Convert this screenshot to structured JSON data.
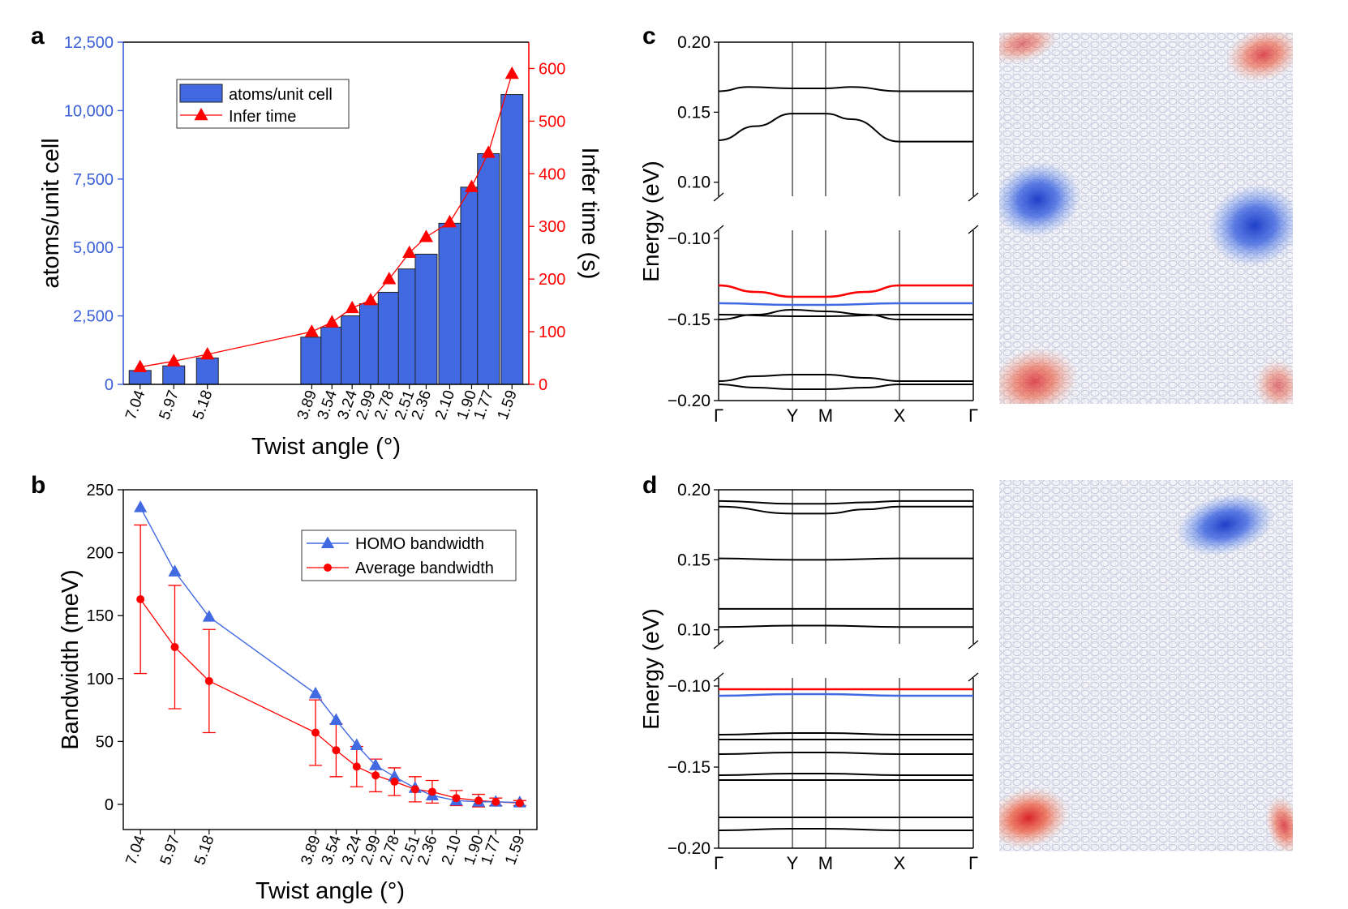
{
  "panels": {
    "a": "a",
    "b": "b",
    "c": "c",
    "d": "d"
  },
  "colors": {
    "blue": "#4169e1",
    "blue_axis": "#3a5fd9",
    "red": "#ff0000",
    "black": "#000000"
  },
  "chart_data": [
    {
      "id": "a",
      "type": "bar",
      "categories": [
        "7.04",
        "5.97",
        "5.18",
        "3.89",
        "3.54",
        "3.24",
        "2.99",
        "2.78",
        "2.51",
        "2.36",
        "2.10",
        "1.90",
        "1.77",
        "1.59"
      ],
      "x_positions": [
        0,
        1,
        2,
        5.1,
        5.7,
        6.3,
        6.85,
        7.4,
        8.0,
        8.5,
        9.2,
        9.85,
        10.35,
        11.05
      ],
      "xlim": [
        -0.5,
        11.55
      ],
      "xlabel": "Twist angle (°)",
      "series": [
        {
          "name": "atoms/unit cell",
          "type": "bar",
          "axis": "left",
          "values": [
            508,
            676,
            964,
            1724,
            2092,
            2504,
            2944,
            3364,
            4216,
            4756,
            5884,
            7204,
            8428,
            10588
          ]
        },
        {
          "name": "Infer time",
          "type": "line",
          "axis": "right",
          "values": [
            33,
            44,
            57,
            100,
            118,
            145,
            160,
            200,
            250,
            280,
            308,
            375,
            440,
            590
          ]
        }
      ],
      "ylabel_left": "atoms/unit cell",
      "ylim_left": [
        0,
        12500
      ],
      "yticks_left": [
        0,
        2500,
        5000,
        7500,
        10000,
        12500
      ],
      "yticklabels_left": [
        "0",
        "2,500",
        "5,000",
        "7,500",
        "10,000",
        "12,500"
      ],
      "ylabel_right": "Infer time (s)",
      "ylim_right": [
        0,
        650
      ],
      "yticks_right": [
        0,
        100,
        200,
        300,
        400,
        500,
        600
      ],
      "yticklabels_right": [
        "0",
        "100",
        "200",
        "300",
        "400",
        "500",
        "600"
      ],
      "legend": [
        "atoms/unit cell",
        "Infer time"
      ],
      "legend_position": "top-left"
    },
    {
      "id": "b",
      "type": "line",
      "categories": [
        "7.04",
        "5.97",
        "5.18",
        "3.89",
        "3.54",
        "3.24",
        "2.99",
        "2.78",
        "2.51",
        "2.36",
        "2.10",
        "1.90",
        "1.77",
        "1.59"
      ],
      "x_positions": [
        0,
        1,
        2,
        5.1,
        5.7,
        6.3,
        6.85,
        7.4,
        8.0,
        8.5,
        9.2,
        9.85,
        10.35,
        11.05
      ],
      "xlim": [
        -0.5,
        11.55
      ],
      "xlabel": "Twist angle (°)",
      "ylabel": "Bandwidth (meV)",
      "ylim": [
        -20,
        250
      ],
      "yticks": [
        0,
        50,
        100,
        150,
        200,
        250
      ],
      "series": [
        {
          "name": "HOMO bandwidth",
          "marker": "triangle",
          "values": [
            236,
            185,
            149,
            88,
            67,
            47,
            31,
            22,
            13,
            7,
            3,
            2,
            2,
            1.5
          ]
        },
        {
          "name": "Average bandwidth",
          "marker": "circle",
          "values": [
            163,
            125,
            98,
            57,
            43,
            30,
            23,
            18,
            12,
            10,
            5,
            3,
            2,
            1
          ],
          "errors": [
            59,
            49,
            41,
            26,
            21,
            16,
            13,
            11,
            10,
            9,
            6,
            5,
            3,
            2
          ]
        }
      ],
      "legend": [
        "HOMO bandwidth",
        "Average bandwidth"
      ],
      "legend_position": "top-right"
    },
    {
      "id": "c",
      "type": "line",
      "ylabel": "Energy (eV)",
      "xticks": [
        "Γ",
        "Y",
        "M",
        "X",
        "Γ"
      ],
      "xtick_positions": [
        0,
        1,
        1.45,
        2.45,
        3.45
      ],
      "broken_axis": true,
      "upper_ylim": [
        0.09,
        0.2
      ],
      "upper_yticks": [
        0.1,
        0.15,
        0.2
      ],
      "upper_yticklabels": [
        "0.10",
        "0.15",
        "0.20"
      ],
      "lower_ylim": [
        -0.2,
        -0.095
      ],
      "lower_yticks": [
        -0.2,
        -0.15,
        -0.1
      ],
      "lower_yticklabels": [
        "−0.20",
        "−0.15",
        "−0.10"
      ],
      "bands": [
        {
          "color": "black",
          "k": [
            0,
            0.4,
            1,
            1.45,
            1.8,
            2.45,
            3.45
          ],
          "e": [
            0.165,
            0.168,
            0.167,
            0.167,
            0.168,
            0.165,
            0.165
          ]
        },
        {
          "color": "black",
          "k": [
            0,
            0.5,
            1,
            1.45,
            1.8,
            2.45,
            3.45
          ],
          "e": [
            0.13,
            0.14,
            0.149,
            0.149,
            0.145,
            0.129,
            0.129
          ]
        },
        {
          "color": "red",
          "k": [
            0,
            0.5,
            1,
            1.45,
            2.0,
            2.45,
            3.45
          ],
          "e": [
            -0.129,
            -0.133,
            -0.136,
            -0.136,
            -0.133,
            -0.129,
            -0.129
          ]
        },
        {
          "color": "blue",
          "k": [
            0,
            1,
            1.45,
            2.45,
            3.45
          ],
          "e": [
            -0.14,
            -0.141,
            -0.141,
            -0.14,
            -0.14
          ]
        },
        {
          "color": "black",
          "k": [
            0,
            0.5,
            1,
            1.45,
            2.0,
            2.45,
            3.45
          ],
          "e": [
            -0.15,
            -0.147,
            -0.144,
            -0.145,
            -0.147,
            -0.15,
            -0.15
          ]
        },
        {
          "color": "black",
          "k": [
            0,
            1,
            1.45,
            2.45,
            3.45
          ],
          "e": [
            -0.147,
            -0.148,
            -0.148,
            -0.147,
            -0.147
          ]
        },
        {
          "color": "black",
          "k": [
            0,
            0.5,
            1,
            1.45,
            2.0,
            2.45,
            3.45
          ],
          "e": [
            -0.188,
            -0.185,
            -0.184,
            -0.184,
            -0.186,
            -0.188,
            -0.188
          ]
        },
        {
          "color": "black",
          "k": [
            0,
            0.5,
            1,
            1.45,
            2.0,
            2.45,
            3.45
          ],
          "e": [
            -0.19,
            -0.192,
            -0.193,
            -0.193,
            -0.192,
            -0.19,
            -0.19
          ]
        }
      ],
      "map_blobs": [
        {
          "color": "red",
          "cx": 0.08,
          "cy": 0.03,
          "rx": 0.12,
          "ry": 0.05,
          "alpha": 0.6
        },
        {
          "color": "red",
          "cx": 0.9,
          "cy": 0.06,
          "rx": 0.13,
          "ry": 0.07,
          "alpha": 0.8
        },
        {
          "color": "blue",
          "cx": 0.13,
          "cy": 0.45,
          "rx": 0.15,
          "ry": 0.1,
          "alpha": 1.0
        },
        {
          "color": "blue",
          "cx": 0.87,
          "cy": 0.52,
          "rx": 0.16,
          "ry": 0.11,
          "alpha": 1.0
        },
        {
          "color": "red",
          "cx": 0.12,
          "cy": 0.94,
          "rx": 0.15,
          "ry": 0.09,
          "alpha": 0.8
        },
        {
          "color": "red",
          "cx": 0.95,
          "cy": 0.95,
          "rx": 0.08,
          "ry": 0.07,
          "alpha": 0.6
        }
      ]
    },
    {
      "id": "d",
      "type": "line",
      "ylabel": "Energy (eV)",
      "xticks": [
        "Γ",
        "Y",
        "M",
        "X",
        "Γ"
      ],
      "xtick_positions": [
        0,
        1,
        1.45,
        2.45,
        3.45
      ],
      "broken_axis": true,
      "upper_ylim": [
        0.09,
        0.2
      ],
      "upper_yticks": [
        0.1,
        0.15,
        0.2
      ],
      "upper_yticklabels": [
        "0.10",
        "0.15",
        "0.20"
      ],
      "lower_ylim": [
        -0.2,
        -0.095
      ],
      "lower_yticks": [
        -0.2,
        -0.15,
        -0.1
      ],
      "lower_yticklabels": [
        "−0.20",
        "−0.15",
        "−0.10"
      ],
      "bands": [
        {
          "color": "black",
          "k": [
            0,
            1,
            1.45,
            2.0,
            2.45,
            3.45
          ],
          "e": [
            0.192,
            0.19,
            0.19,
            0.191,
            0.192,
            0.192
          ]
        },
        {
          "color": "black",
          "k": [
            0,
            1,
            1.45,
            2.0,
            2.45,
            3.45
          ],
          "e": [
            0.188,
            0.183,
            0.183,
            0.186,
            0.188,
            0.188
          ]
        },
        {
          "color": "black",
          "k": [
            0,
            1,
            1.45,
            2.45,
            3.45
          ],
          "e": [
            0.151,
            0.15,
            0.15,
            0.151,
            0.151
          ]
        },
        {
          "color": "black",
          "k": [
            0,
            1,
            1.45,
            2.45,
            3.45
          ],
          "e": [
            0.115,
            0.115,
            0.115,
            0.115,
            0.115
          ]
        },
        {
          "color": "black",
          "k": [
            0,
            1,
            1.45,
            2.45,
            3.45
          ],
          "e": [
            0.102,
            0.103,
            0.103,
            0.102,
            0.102
          ]
        },
        {
          "color": "red",
          "k": [
            0,
            1,
            1.45,
            2.45,
            3.45
          ],
          "e": [
            -0.102,
            -0.102,
            -0.102,
            -0.102,
            -0.102
          ]
        },
        {
          "color": "blue",
          "k": [
            0,
            1,
            1.45,
            2.45,
            3.45
          ],
          "e": [
            -0.106,
            -0.105,
            -0.105,
            -0.106,
            -0.106
          ]
        },
        {
          "color": "black",
          "k": [
            0,
            1,
            1.45,
            2.45,
            3.45
          ],
          "e": [
            -0.13,
            -0.129,
            -0.129,
            -0.13,
            -0.13
          ]
        },
        {
          "color": "black",
          "k": [
            0,
            1,
            1.45,
            2.45,
            3.45
          ],
          "e": [
            -0.133,
            -0.133,
            -0.133,
            -0.133,
            -0.133
          ]
        },
        {
          "color": "black",
          "k": [
            0,
            1,
            1.45,
            2.45,
            3.45
          ],
          "e": [
            -0.142,
            -0.141,
            -0.141,
            -0.142,
            -0.142
          ]
        },
        {
          "color": "black",
          "k": [
            0,
            1,
            1.45,
            2.45,
            3.45
          ],
          "e": [
            -0.155,
            -0.154,
            -0.154,
            -0.155,
            -0.155
          ]
        },
        {
          "color": "black",
          "k": [
            0,
            1,
            1.45,
            2.45,
            3.45
          ],
          "e": [
            -0.158,
            -0.158,
            -0.158,
            -0.158,
            -0.158
          ]
        },
        {
          "color": "black",
          "k": [
            0,
            1,
            1.45,
            2.45,
            3.45
          ],
          "e": [
            -0.181,
            -0.181,
            -0.181,
            -0.181,
            -0.181
          ]
        },
        {
          "color": "black",
          "k": [
            0,
            1,
            1.45,
            2.45,
            3.45
          ],
          "e": [
            -0.189,
            -0.188,
            -0.188,
            -0.189,
            -0.189
          ]
        }
      ],
      "map_blobs": [
        {
          "color": "blue",
          "cx": 0.77,
          "cy": 0.12,
          "rx": 0.17,
          "ry": 0.08,
          "alpha": 1.0
        },
        {
          "color": "red",
          "cx": 0.1,
          "cy": 0.91,
          "rx": 0.14,
          "ry": 0.08,
          "alpha": 1.0
        },
        {
          "color": "red",
          "cx": 0.97,
          "cy": 0.93,
          "rx": 0.06,
          "ry": 0.08,
          "alpha": 0.8
        }
      ]
    }
  ]
}
